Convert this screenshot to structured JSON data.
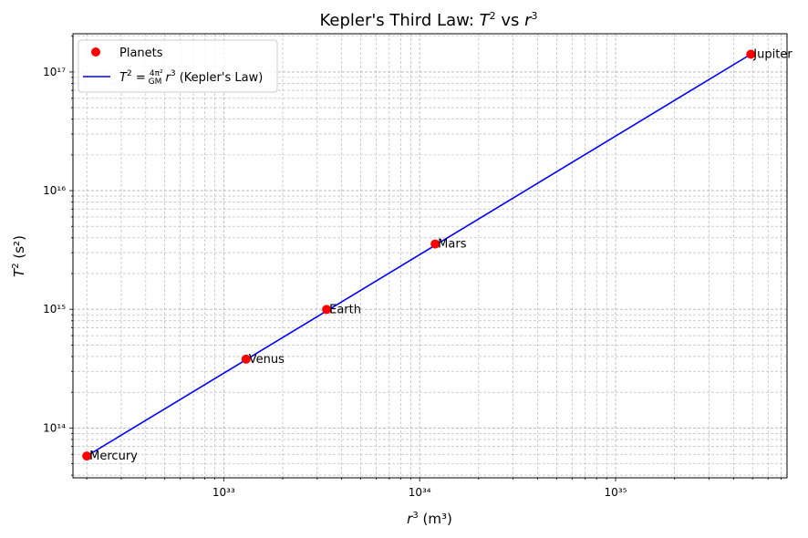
{
  "chart_data": {
    "type": "scatter",
    "title": "Kepler's Third Law: T² vs r³",
    "xlabel": "r³ (m³)",
    "ylabel": "T² (s²)",
    "xscale": "log",
    "yscale": "log",
    "xlim": [
      1.7e+32,
      7.5e+35
    ],
    "ylim": [
      38000000000000.0,
      2.1e+17
    ],
    "grid": true,
    "legend_position": "top-left",
    "x_ticks": [
      "10³³",
      "10³⁴",
      "10³⁵"
    ],
    "y_ticks": [
      "10¹⁴",
      "10¹⁵",
      "10¹⁶",
      "10¹⁷"
    ],
    "series": [
      {
        "name": "Planets",
        "kind": "points",
        "color": "#ff0000",
        "labels": [
          "Mercury",
          "Venus",
          "Earth",
          "Mars",
          "Jupiter"
        ],
        "x": [
          2e+32,
          1.3e+33,
          3.35e+33,
          1.2e+34,
          4.9e+35
        ],
        "y": [
          58000000000000.0,
          380000000000000.0,
          996000000000000.0,
          3550000000000000.0,
          1.41e+17
        ]
      },
      {
        "name": "T² = (4π²/GM) r³ (Kepler's Law)",
        "kind": "line",
        "color": "#0000ff",
        "x": [
          2e+32,
          4.9e+35
        ],
        "y": [
          58000000000000.0,
          1.41e+17
        ]
      }
    ]
  }
}
